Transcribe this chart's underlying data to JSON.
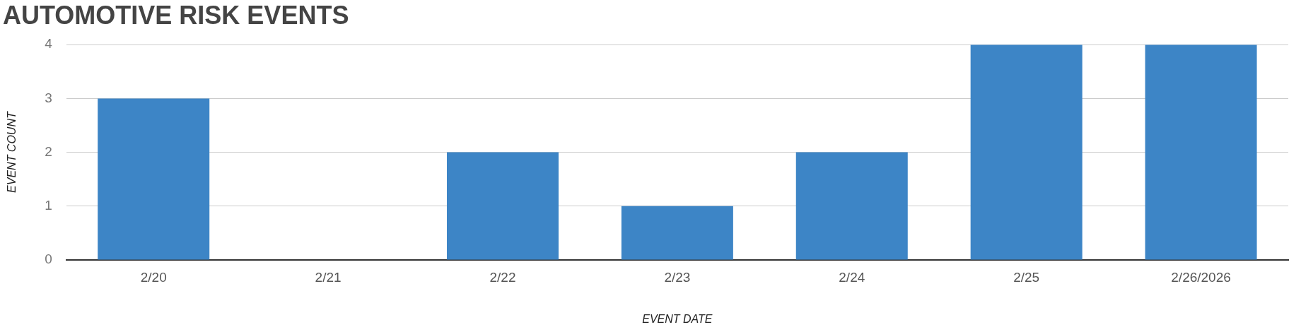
{
  "chart_data": {
    "type": "bar",
    "title": "AUTOMOTIVE RISK EVENTS",
    "xlabel": "EVENT DATE",
    "ylabel": "EVENT COUNT",
    "categories": [
      "2/20",
      "2/21",
      "2/22",
      "2/23",
      "2/24",
      "2/25",
      "2/26/2026"
    ],
    "values": [
      3,
      0,
      2,
      1,
      2,
      4,
      4
    ],
    "color": "#3d85c6",
    "ylim": [
      0,
      4
    ],
    "yticks": [
      0,
      1,
      2,
      3,
      4
    ],
    "grid": "y",
    "legend": false
  }
}
